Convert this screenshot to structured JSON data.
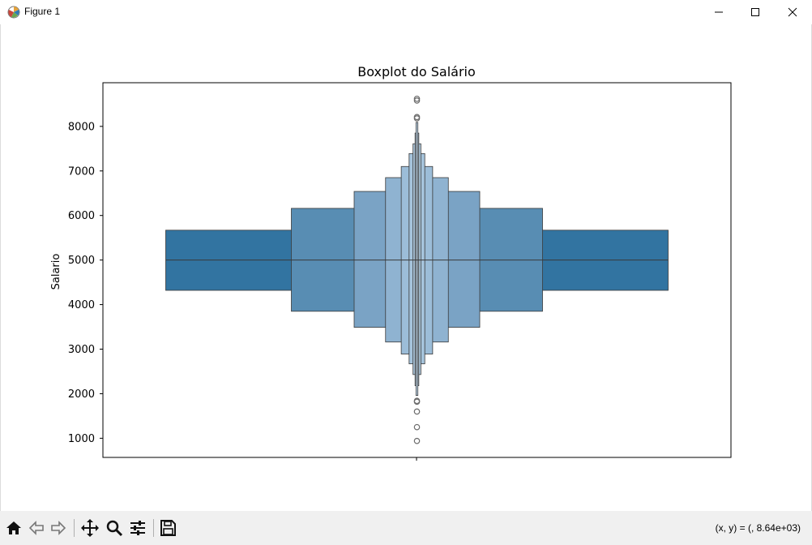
{
  "window": {
    "title": "Figure 1",
    "controls": {
      "minimize": "minimize-icon",
      "maximize": "maximize-icon",
      "close": "close-icon"
    }
  },
  "toolbar": {
    "buttons": [
      "home-icon",
      "back-arrow-icon",
      "forward-arrow-icon",
      "pan-icon",
      "zoom-icon",
      "configure-subplots-icon",
      "save-icon"
    ],
    "coords": "(x, y) = (, 8.64e+03)"
  },
  "chart_data": {
    "type": "boxen",
    "title": "Boxplot do Salário",
    "xlabel": "",
    "ylabel": "Salario",
    "ylim": [
      570,
      8980
    ],
    "yticks": [
      1000,
      2000,
      3000,
      4000,
      5000,
      6000,
      7000,
      8000
    ],
    "grid": false,
    "median": 5000,
    "levels": [
      {
        "lower": 4320,
        "upper": 5670,
        "width": 0.8
      },
      {
        "lower": 3850,
        "upper": 6160,
        "width": 0.4
      },
      {
        "lower": 3490,
        "upper": 6540,
        "width": 0.2
      },
      {
        "lower": 3160,
        "upper": 6850,
        "width": 0.1
      },
      {
        "lower": 2890,
        "upper": 7100,
        "width": 0.05
      },
      {
        "lower": 2670,
        "upper": 7390,
        "width": 0.025
      },
      {
        "lower": 2430,
        "upper": 7610,
        "width": 0.0125
      },
      {
        "lower": 2180,
        "upper": 7850,
        "width": 0.006
      },
      {
        "lower": 1960,
        "upper": 8090,
        "width": 0.003
      }
    ],
    "outliers": [
      8620,
      8580,
      8210,
      8180,
      1840,
      1820,
      1600,
      1250,
      940
    ],
    "colors": {
      "levels": [
        "#3274a1",
        "#588db3",
        "#7aa3c5",
        "#8fb3d1",
        "#9cbdd8",
        "#a6c4dc",
        "#afcae0",
        "#b7cfe3",
        "#bed4e6"
      ],
      "edge": "#3a3a3a",
      "outlier": "#6b6b6b"
    }
  }
}
